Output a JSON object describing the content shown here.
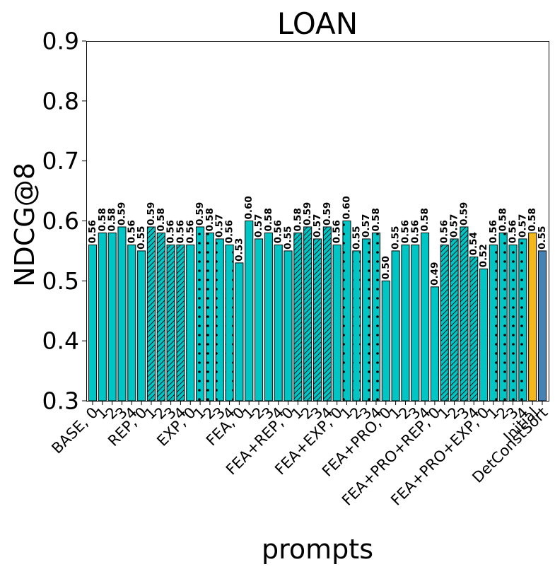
{
  "chart_data": {
    "type": "bar",
    "title": "LOAN",
    "xlabel": "prompts",
    "ylabel": "NDCG@8",
    "ylim": [
      0.3,
      0.9
    ],
    "yticks": [
      "0.3",
      "0.4",
      "0.5",
      "0.6",
      "0.7",
      "0.8",
      "0.9"
    ],
    "grid": false,
    "legend": "none",
    "colors": {
      "default": "#00c5c5",
      "initial": "#f5b81c",
      "detconstsort": "#4682b4",
      "edge": "#000000"
    },
    "xtick_labels": [
      "BASE, 0",
      "1",
      "2",
      "3",
      "4",
      "REP, 0",
      "1",
      "2",
      "3",
      "4",
      "EXP, 0",
      "1",
      "2",
      "3",
      "4",
      "FEA, 0",
      "1",
      "2",
      "3",
      "4",
      "FEA+REP, 0",
      "1",
      "2",
      "3",
      "4",
      "FEA+EXP, 0",
      "1",
      "2",
      "3",
      "4",
      "FEA+PRO, 0",
      "1",
      "2",
      "3",
      "4",
      "FEA+PRO+REP, 0",
      "1",
      "2",
      "3",
      "4",
      "FEA+PRO+EXP, 0",
      "1",
      "2",
      "3",
      "4",
      "Initial",
      "DetConstSort"
    ],
    "values": [
      0.56,
      0.58,
      0.58,
      0.59,
      0.56,
      0.55,
      0.59,
      0.58,
      0.56,
      0.56,
      0.56,
      0.59,
      0.58,
      0.57,
      0.56,
      0.53,
      0.6,
      0.57,
      0.58,
      0.56,
      0.55,
      0.58,
      0.59,
      0.57,
      0.59,
      0.56,
      0.6,
      0.55,
      0.57,
      0.58,
      0.5,
      0.55,
      0.56,
      0.56,
      0.58,
      0.49,
      0.56,
      0.57,
      0.59,
      0.54,
      0.52,
      0.56,
      0.58,
      0.56,
      0.57,
      0.58,
      0.55
    ],
    "value_labels": [
      "0.56",
      "0.58",
      "0.58",
      "0.59",
      "0.56",
      "0.55",
      "0.59",
      "0.58",
      "0.56",
      "0.56",
      "0.56",
      "0.59",
      "0.58",
      "0.57",
      "0.56",
      "0.53",
      "0.60",
      "0.57",
      "0.58",
      "0.56",
      "0.55",
      "0.58",
      "0.59",
      "0.57",
      "0.59",
      "0.56",
      "0.60",
      "0.55",
      "0.57",
      "0.58",
      "0.50",
      "0.55",
      "0.56",
      "0.56",
      "0.58",
      "0.49",
      "0.56",
      "0.57",
      "0.59",
      "0.54",
      "0.52",
      "0.56",
      "0.58",
      "0.56",
      "0.57",
      "0.58",
      "0.55"
    ],
    "hatch": [
      "none",
      "none",
      "none",
      "none",
      "none",
      "none",
      "hatch",
      "hatch",
      "hatch",
      "hatch",
      "none",
      "dots",
      "dots",
      "dots",
      "dots",
      "none",
      "none",
      "none",
      "none",
      "none",
      "none",
      "hatch",
      "hatch",
      "hatch",
      "hatch",
      "none",
      "dots",
      "dots",
      "dots",
      "dots",
      "none",
      "none",
      "none",
      "none",
      "none",
      "none",
      "hatch",
      "hatch",
      "hatch",
      "hatch",
      "none",
      "dots",
      "dots",
      "dots",
      "dots",
      "none",
      "none"
    ],
    "bar_colors": [
      "#00c5c5",
      "#00c5c5",
      "#00c5c5",
      "#00c5c5",
      "#00c5c5",
      "#00c5c5",
      "#00c5c5",
      "#00c5c5",
      "#00c5c5",
      "#00c5c5",
      "#00c5c5",
      "#00c5c5",
      "#00c5c5",
      "#00c5c5",
      "#00c5c5",
      "#00c5c5",
      "#00c5c5",
      "#00c5c5",
      "#00c5c5",
      "#00c5c5",
      "#00c5c5",
      "#00c5c5",
      "#00c5c5",
      "#00c5c5",
      "#00c5c5",
      "#00c5c5",
      "#00c5c5",
      "#00c5c5",
      "#00c5c5",
      "#00c5c5",
      "#00c5c5",
      "#00c5c5",
      "#00c5c5",
      "#00c5c5",
      "#00c5c5",
      "#00c5c5",
      "#00c5c5",
      "#00c5c5",
      "#00c5c5",
      "#00c5c5",
      "#00c5c5",
      "#00c5c5",
      "#00c5c5",
      "#00c5c5",
      "#00c5c5",
      "#f5b81c",
      "#4682b4"
    ]
  }
}
